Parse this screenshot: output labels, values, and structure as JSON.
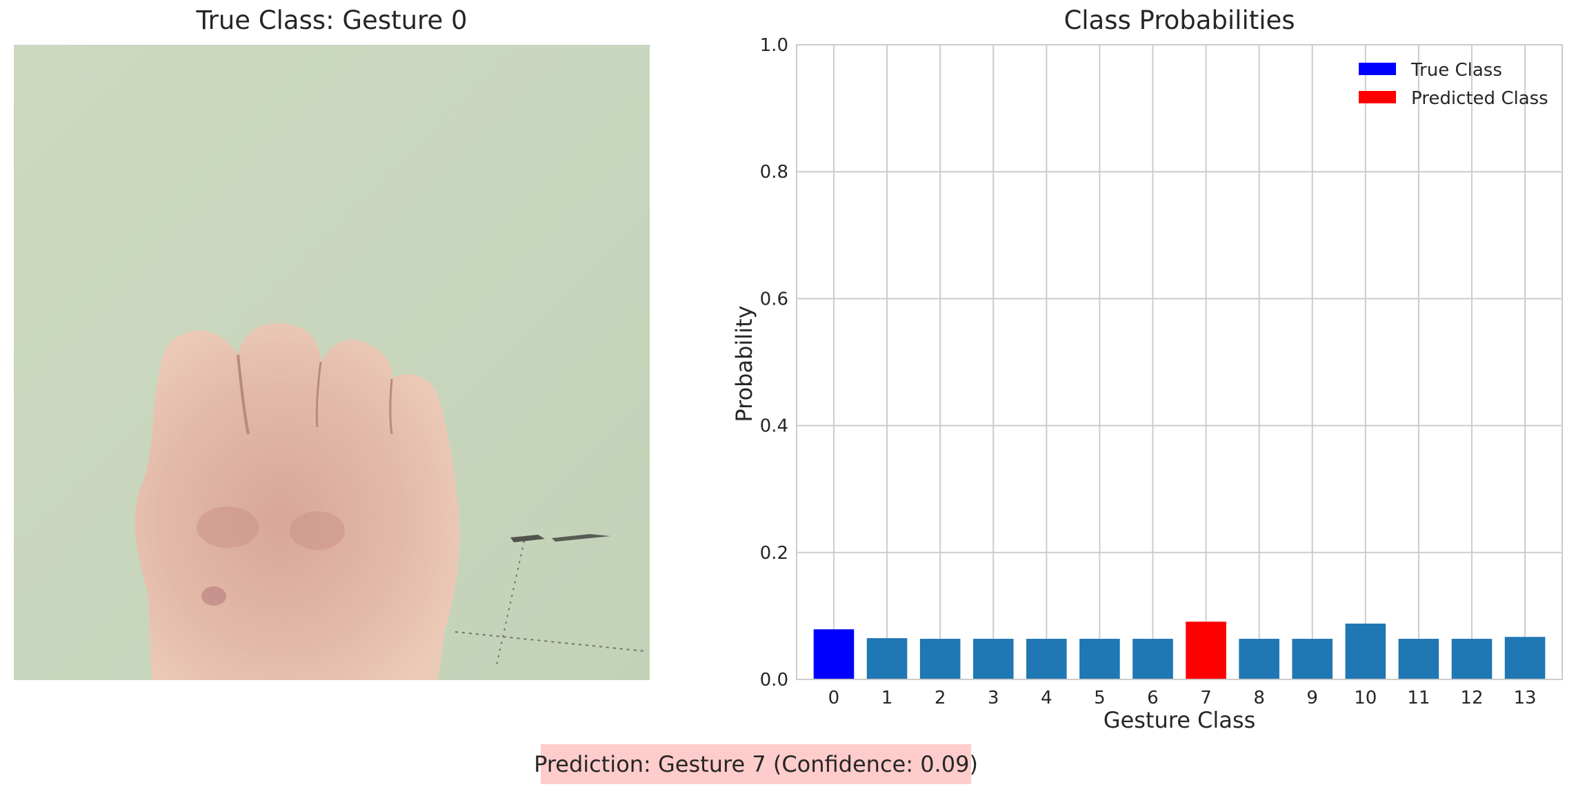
{
  "left_panel": {
    "title": "True Class: Gesture 0",
    "image_description_icon": "hand-fist-photo"
  },
  "chart_data": {
    "type": "bar",
    "title": "Class Probabilities",
    "xlabel": "Gesture Class",
    "ylabel": "Probability",
    "ylim": [
      0.0,
      1.0
    ],
    "yticks": [
      "0.0",
      "0.2",
      "0.4",
      "0.6",
      "0.8",
      "1.0"
    ],
    "ytick_values": [
      0.0,
      0.2,
      0.4,
      0.6,
      0.8,
      1.0
    ],
    "categories": [
      "0",
      "1",
      "2",
      "3",
      "4",
      "5",
      "6",
      "7",
      "8",
      "9",
      "10",
      "11",
      "12",
      "13"
    ],
    "values": [
      0.079,
      0.065,
      0.064,
      0.064,
      0.064,
      0.064,
      0.064,
      0.091,
      0.064,
      0.064,
      0.088,
      0.064,
      0.064,
      0.067
    ],
    "true_class_index": 0,
    "predicted_class_index": 7,
    "grid": true,
    "legend_position": "top-right",
    "legend": [
      {
        "label": "True Class",
        "color": "#0000ff"
      },
      {
        "label": "Predicted Class",
        "color": "#ff0000"
      }
    ],
    "colors": {
      "default": "#1f77b4",
      "true": "#0000ff",
      "predicted": "#ff0000"
    }
  },
  "footer": {
    "prediction_text": "Prediction: Gesture 7 (Confidence: 0.09)"
  }
}
